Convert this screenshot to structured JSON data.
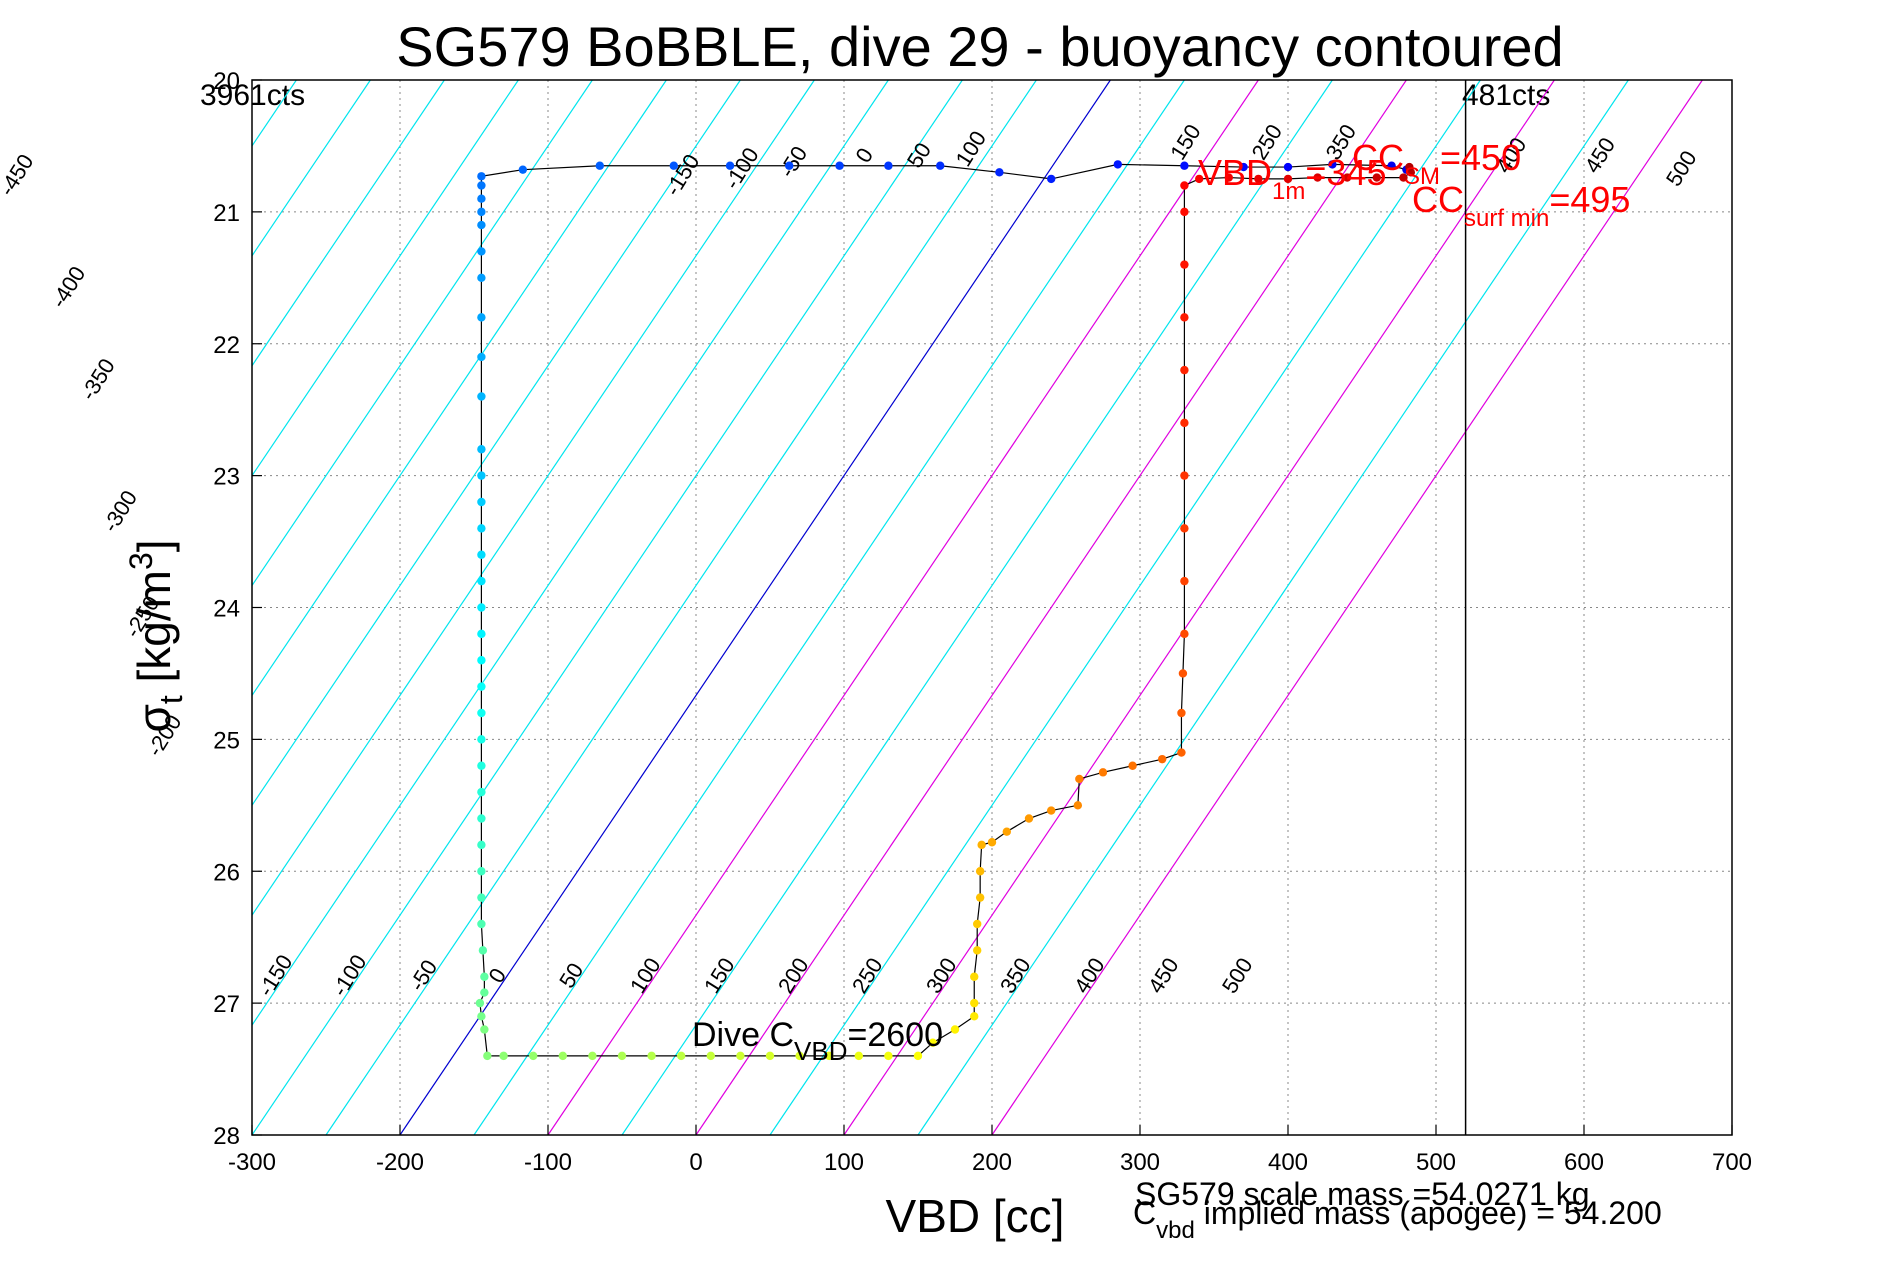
{
  "chart_data": {
    "type": "scatter",
    "title": "SG579 BoBBLE, dive 29 - buoyancy contoured",
    "xlabel": "VBD [cc]",
    "ylabel_main": "σ",
    "ylabel_sub": "t",
    "ylabel_unit": " [kg/m",
    "ylabel_sup": "3",
    "ylabel_close": "]",
    "xlim": [
      -300,
      700
    ],
    "ylim": [
      20,
      28
    ],
    "y_reversed": true,
    "grid": true,
    "xticks": [
      "-300",
      "-200",
      "-100",
      "0",
      "100",
      "200",
      "300",
      "400",
      "500",
      "600",
      "700"
    ],
    "yticks": [
      "20",
      "21",
      "22",
      "23",
      "24",
      "25",
      "26",
      "27",
      "28"
    ],
    "left_counts": "3961cts",
    "right_counts": "481cts",
    "right_limit_vbd": 520,
    "colors": {
      "contour": "#00e5ee",
      "contour_highlight": "#e000e0",
      "zero_line": "#0000d0",
      "annotation_red": "#ff0000",
      "trace_line": "#000000"
    },
    "contour_labels_top": [
      "-450",
      "-400",
      "-350",
      "-300",
      "-250",
      "-200",
      "-150",
      "-100",
      "-50",
      "0",
      "50",
      "100",
      "150",
      "250",
      "350",
      "400",
      "450",
      "500"
    ],
    "contour_labels_bottom": [
      "-150",
      "-100",
      "-50",
      "0",
      "50",
      "100",
      "150",
      "200",
      "250",
      "300",
      "350",
      "400",
      "450",
      "500"
    ],
    "annotations": {
      "vbd_label": "VBD",
      "vbd_sub": "1m",
      "vbd_value": "=345",
      "cc_sm_label": "CC",
      "cc_sm_sub": "SM",
      "cc_sm_value": "=450",
      "cc_surf_label": "CC",
      "cc_surf_sub": "surf min",
      "cc_surf_value": "=495",
      "dive_c_label": "Dive C",
      "dive_c_sub": "VBD",
      "dive_c_value": "=2600"
    },
    "footer": {
      "scale_mass": "SG579 scale mass =54.0271 kg",
      "implied_label": "C",
      "implied_sub": "vbd",
      "implied_text": " implied mass (apogee) = 54.200"
    },
    "series": [
      {
        "phase": "descent",
        "points": [
          [
            480,
            20.68
          ],
          [
            470,
            20.65
          ],
          [
            430,
            20.64
          ],
          [
            400,
            20.66
          ],
          [
            370,
            20.66
          ],
          [
            330,
            20.65
          ],
          [
            285,
            20.64
          ],
          [
            240,
            20.75
          ],
          [
            205,
            20.7
          ],
          [
            165,
            20.65
          ],
          [
            130,
            20.65
          ],
          [
            97,
            20.65
          ],
          [
            63,
            20.65
          ],
          [
            23,
            20.65
          ],
          [
            -15,
            20.65
          ],
          [
            -65,
            20.65
          ],
          [
            -117,
            20.68
          ],
          [
            -145,
            20.73
          ],
          [
            -145,
            20.8
          ],
          [
            -145,
            20.9
          ],
          [
            -145,
            21.0
          ],
          [
            -145,
            21.1
          ],
          [
            -145,
            21.3
          ],
          [
            -145,
            21.5
          ],
          [
            -145,
            21.8
          ],
          [
            -145,
            22.1
          ],
          [
            -145,
            22.4
          ],
          [
            -145,
            22.8
          ],
          [
            -145,
            23.0
          ],
          [
            -145,
            23.2
          ],
          [
            -145,
            23.4
          ],
          [
            -145,
            23.6
          ],
          [
            -145,
            23.8
          ],
          [
            -145,
            24.0
          ],
          [
            -145,
            24.2
          ],
          [
            -145,
            24.4
          ],
          [
            -145,
            24.6
          ],
          [
            -145,
            24.8
          ],
          [
            -145,
            25.0
          ],
          [
            -145,
            25.2
          ],
          [
            -145,
            25.4
          ],
          [
            -145,
            25.6
          ],
          [
            -145,
            25.8
          ],
          [
            -145,
            26.0
          ],
          [
            -145,
            26.2
          ],
          [
            -145,
            26.4
          ],
          [
            -144,
            26.6
          ],
          [
            -143,
            26.8
          ],
          [
            -143,
            26.92
          ]
        ]
      },
      {
        "phase": "bottom",
        "points": [
          [
            -146,
            27.0
          ],
          [
            -145,
            27.1
          ],
          [
            -143,
            27.2
          ],
          [
            -141,
            27.4
          ],
          [
            -130,
            27.4
          ],
          [
            -110,
            27.4
          ],
          [
            -90,
            27.4
          ],
          [
            -70,
            27.4
          ],
          [
            -50,
            27.4
          ],
          [
            -30,
            27.4
          ],
          [
            -10,
            27.4
          ],
          [
            10,
            27.4
          ],
          [
            30,
            27.4
          ],
          [
            50,
            27.4
          ],
          [
            70,
            27.4
          ],
          [
            90,
            27.4
          ],
          [
            110,
            27.4
          ],
          [
            130,
            27.4
          ],
          [
            150,
            27.4
          ],
          [
            160,
            27.3
          ],
          [
            175,
            27.2
          ],
          [
            188,
            27.1
          ]
        ]
      },
      {
        "phase": "ascent",
        "points": [
          [
            188,
            27.0
          ],
          [
            188,
            26.8
          ],
          [
            190,
            26.6
          ],
          [
            190,
            26.4
          ],
          [
            192,
            26.2
          ],
          [
            192,
            26.0
          ],
          [
            193,
            25.8
          ],
          [
            200,
            25.78
          ],
          [
            210,
            25.7
          ],
          [
            225,
            25.6
          ],
          [
            240,
            25.54
          ],
          [
            258,
            25.5
          ],
          [
            259,
            25.3
          ],
          [
            275,
            25.25
          ],
          [
            295,
            25.2
          ],
          [
            315,
            25.15
          ],
          [
            328,
            25.1
          ],
          [
            328,
            24.8
          ],
          [
            329,
            24.5
          ],
          [
            330,
            24.2
          ],
          [
            330,
            23.8
          ],
          [
            330,
            23.4
          ],
          [
            330,
            23.0
          ],
          [
            330,
            22.6
          ],
          [
            330,
            22.2
          ],
          [
            330,
            21.8
          ],
          [
            330,
            21.4
          ],
          [
            330,
            21.0
          ],
          [
            330,
            20.8
          ],
          [
            340,
            20.75
          ],
          [
            360,
            20.74
          ],
          [
            380,
            20.75
          ],
          [
            400,
            20.75
          ],
          [
            420,
            20.74
          ],
          [
            440,
            20.74
          ],
          [
            460,
            20.74
          ],
          [
            478,
            20.74
          ],
          [
            483,
            20.7
          ],
          [
            482,
            20.66
          ]
        ]
      }
    ]
  }
}
